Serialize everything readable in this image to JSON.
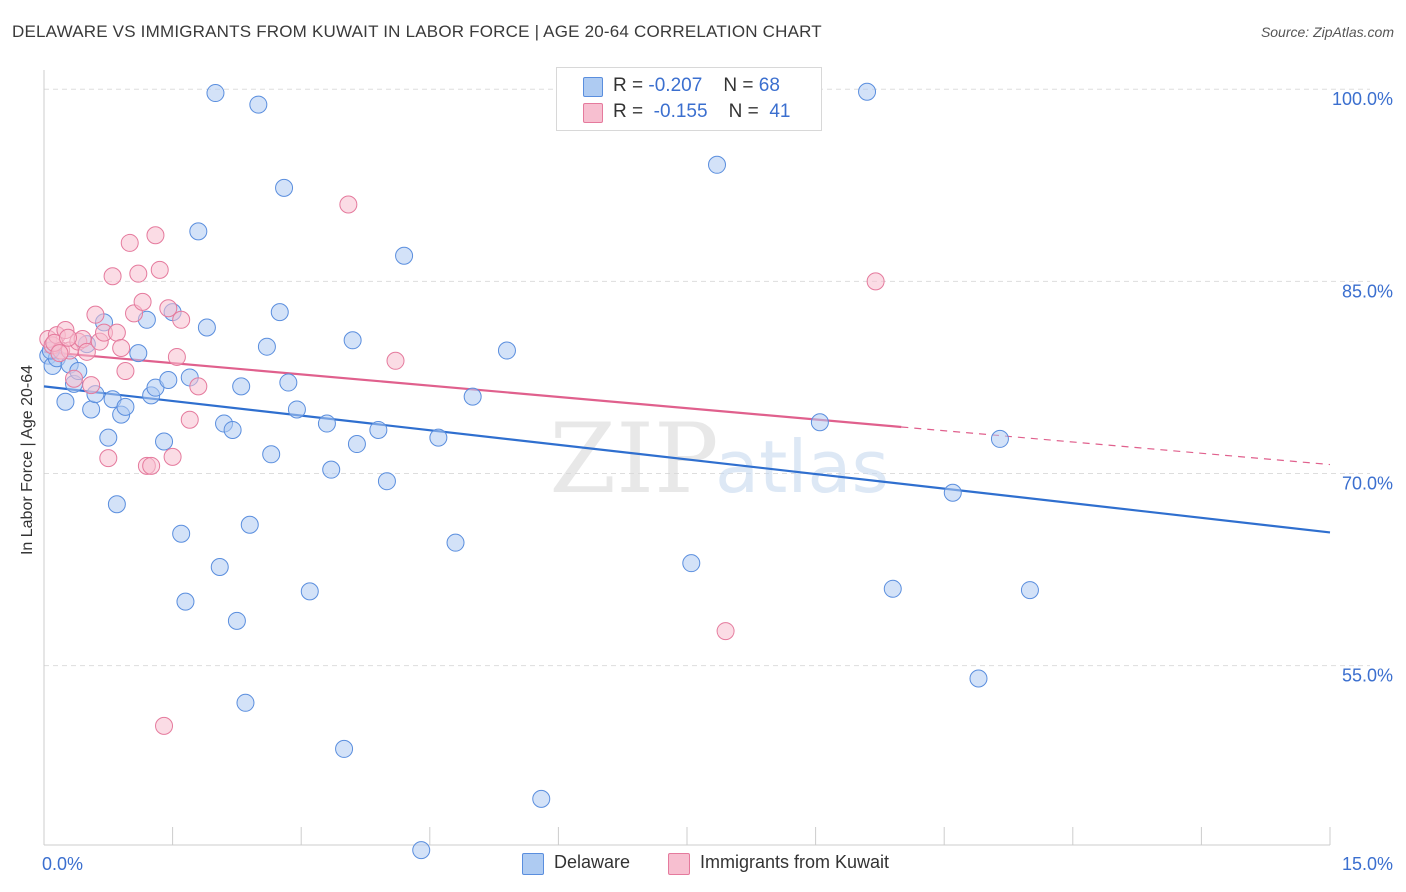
{
  "header": {
    "title": "DELAWARE VS IMMIGRANTS FROM KUWAIT IN LABOR FORCE | AGE 20-64 CORRELATION CHART",
    "source": "Source: ZipAtlas.com"
  },
  "watermark": {
    "zip": "ZIP",
    "atlas": "atlas"
  },
  "legend_top": {
    "rows": [
      {
        "r_label": "R =",
        "r_value": "-0.207",
        "n_label": "N =",
        "n_value": "68"
      },
      {
        "r_label": "R =",
        "r_value": "-0.155",
        "n_label": "N =",
        "n_value": "41"
      }
    ]
  },
  "colors": {
    "blue_fill": "#aecbf2",
    "blue_stroke": "#5a8ede",
    "blue_line": "#2f6fcf",
    "pink_fill": "#f7bfd0",
    "pink_stroke": "#e57a9d",
    "pink_line": "#e0608d",
    "tick_label": "#3b6fcf",
    "grid": "#dddddd"
  },
  "chart_data": {
    "type": "scatter",
    "title": "DELAWARE VS IMMIGRANTS FROM KUWAIT IN LABOR FORCE | AGE 20-64 CORRELATION CHART",
    "xlabel": "",
    "ylabel": "In Labor Force | Age 20-64",
    "xlim": [
      0,
      15
    ],
    "ylim": [
      41,
      101.5
    ],
    "x_tick_labels": [
      "0.0%",
      "15.0%"
    ],
    "y_ticks": [
      55,
      70,
      85,
      100
    ],
    "y_tick_labels": [
      "55.0%",
      "70.0%",
      "85.0%",
      "100.0%"
    ],
    "grid": "horizontal dashed",
    "legend": "top-center and bottom",
    "series": [
      {
        "name": "Delaware",
        "color": "#5a8ede",
        "trend": {
          "x": [
            0,
            15
          ],
          "y": [
            76.8,
            65.4
          ],
          "solid_to": 15
        },
        "points": [
          [
            0.05,
            79.2
          ],
          [
            0.1,
            78.4
          ],
          [
            0.15,
            79.0
          ],
          [
            0.25,
            75.6
          ],
          [
            0.3,
            78.5
          ],
          [
            0.35,
            77.0
          ],
          [
            0.4,
            78.0
          ],
          [
            0.5,
            80.1
          ],
          [
            0.55,
            75.0
          ],
          [
            0.6,
            76.2
          ],
          [
            0.7,
            81.8
          ],
          [
            0.75,
            72.8
          ],
          [
            0.8,
            75.8
          ],
          [
            0.85,
            67.6
          ],
          [
            0.9,
            74.6
          ],
          [
            0.95,
            75.2
          ],
          [
            1.1,
            79.4
          ],
          [
            1.2,
            82.0
          ],
          [
            1.25,
            76.1
          ],
          [
            1.3,
            76.7
          ],
          [
            1.4,
            72.5
          ],
          [
            1.45,
            77.3
          ],
          [
            1.5,
            82.6
          ],
          [
            1.6,
            65.3
          ],
          [
            1.65,
            60.0
          ],
          [
            1.7,
            77.5
          ],
          [
            1.8,
            88.9
          ],
          [
            1.9,
            81.4
          ],
          [
            2.0,
            99.7
          ],
          [
            2.05,
            62.7
          ],
          [
            2.1,
            73.9
          ],
          [
            2.2,
            73.4
          ],
          [
            2.25,
            58.5
          ],
          [
            2.3,
            76.8
          ],
          [
            2.35,
            52.1
          ],
          [
            2.4,
            66.0
          ],
          [
            2.5,
            98.8
          ],
          [
            2.6,
            79.9
          ],
          [
            2.65,
            71.5
          ],
          [
            2.75,
            82.6
          ],
          [
            2.8,
            92.3
          ],
          [
            2.85,
            77.1
          ],
          [
            2.95,
            75.0
          ],
          [
            3.1,
            60.8
          ],
          [
            3.3,
            73.9
          ],
          [
            3.35,
            70.3
          ],
          [
            3.5,
            48.5
          ],
          [
            3.6,
            80.4
          ],
          [
            3.65,
            72.3
          ],
          [
            3.9,
            73.4
          ],
          [
            4.0,
            69.4
          ],
          [
            4.2,
            87.0
          ],
          [
            4.4,
            40.6
          ],
          [
            4.6,
            72.8
          ],
          [
            4.8,
            64.6
          ],
          [
            5.0,
            76.0
          ],
          [
            5.4,
            79.6
          ],
          [
            5.8,
            44.6
          ],
          [
            7.55,
            63.0
          ],
          [
            7.85,
            94.1
          ],
          [
            9.05,
            74.0
          ],
          [
            9.6,
            99.8
          ],
          [
            9.9,
            61.0
          ],
          [
            10.6,
            68.5
          ],
          [
            10.9,
            54.0
          ],
          [
            11.15,
            72.7
          ],
          [
            11.5,
            60.9
          ],
          [
            0.08,
            79.6
          ]
        ]
      },
      {
        "name": "Immigrants from Kuwait",
        "color": "#e57a9d",
        "trend": {
          "x": [
            0,
            15
          ],
          "y": [
            79.5,
            70.7
          ],
          "solid_to": 10
        },
        "points": [
          [
            0.05,
            80.5
          ],
          [
            0.1,
            80.0
          ],
          [
            0.15,
            80.8
          ],
          [
            0.2,
            79.6
          ],
          [
            0.25,
            81.2
          ],
          [
            0.3,
            79.6
          ],
          [
            0.35,
            77.4
          ],
          [
            0.4,
            80.3
          ],
          [
            0.45,
            80.5
          ],
          [
            0.5,
            79.5
          ],
          [
            0.55,
            76.9
          ],
          [
            0.6,
            82.4
          ],
          [
            0.65,
            80.3
          ],
          [
            0.7,
            81.0
          ],
          [
            0.75,
            71.2
          ],
          [
            0.8,
            85.4
          ],
          [
            0.85,
            81.0
          ],
          [
            0.9,
            79.8
          ],
          [
            1.0,
            88.0
          ],
          [
            1.05,
            82.5
          ],
          [
            1.1,
            85.6
          ],
          [
            1.15,
            83.4
          ],
          [
            1.2,
            70.6
          ],
          [
            1.25,
            70.6
          ],
          [
            1.3,
            88.6
          ],
          [
            1.35,
            85.9
          ],
          [
            1.4,
            50.3
          ],
          [
            1.45,
            82.9
          ],
          [
            1.5,
            71.3
          ],
          [
            1.55,
            79.1
          ],
          [
            1.6,
            82.0
          ],
          [
            1.7,
            74.2
          ],
          [
            1.8,
            76.8
          ],
          [
            0.12,
            80.2
          ],
          [
            0.18,
            79.4
          ],
          [
            0.28,
            80.6
          ],
          [
            3.55,
            91.0
          ],
          [
            4.1,
            78.8
          ],
          [
            7.95,
            57.7
          ],
          [
            9.7,
            85.0
          ],
          [
            0.95,
            78.0
          ]
        ]
      }
    ]
  },
  "axes": {
    "y_title": "In Labor Force | Age 20-64"
  },
  "legend_bottom": {
    "items": [
      {
        "label": "Delaware"
      },
      {
        "label": "Immigrants from Kuwait"
      }
    ]
  }
}
